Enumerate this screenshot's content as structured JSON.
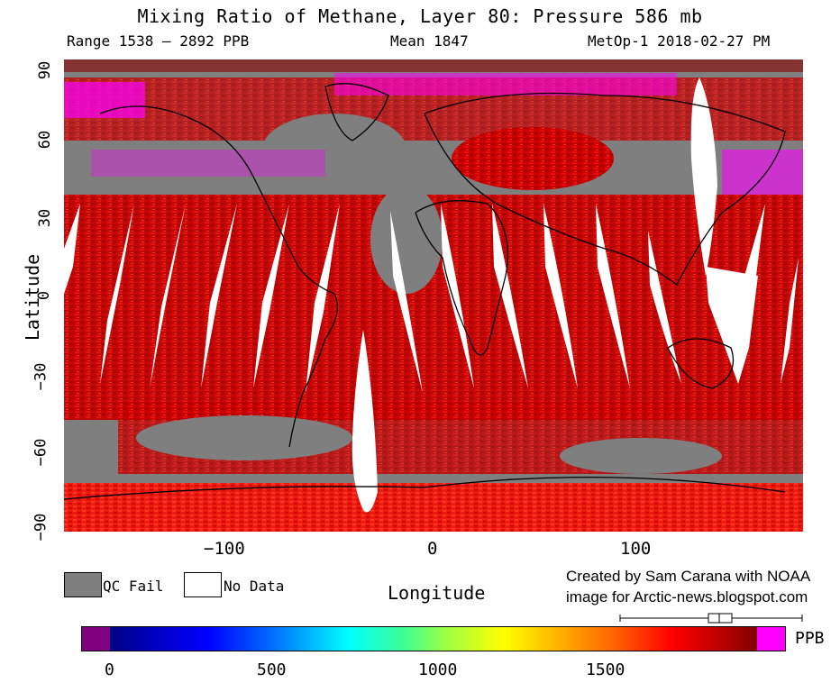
{
  "title": "Mixing Ratio of Methane, Layer 80: Pressure 586 mb",
  "range_label": "Range 1538 – 2892 PPB",
  "mean_label": "Mean 1847",
  "satellite_label": "MetOp-1 2018-02-27 PM",
  "axes": {
    "ylabel": "Latitude",
    "xlabel": "Longitude",
    "yticks": [
      "90",
      "60",
      "30",
      "0",
      "−30",
      "−60",
      "−90"
    ],
    "xticks": [
      "−100",
      "0",
      "100"
    ]
  },
  "legend": {
    "qc_fail_label": "QC Fail",
    "no_data_label": "No Data",
    "qc_fail_color": "#7f7f7f",
    "no_data_color": "#ffffff"
  },
  "credit": {
    "line1": "Created by Sam Carana with NOAA",
    "line2": "image for Arctic-news.blogspot.com"
  },
  "colorbar": {
    "unit": "PPB",
    "ticks": [
      "0",
      "500",
      "1000",
      "1500"
    ],
    "range": [
      0,
      1950
    ]
  }
}
